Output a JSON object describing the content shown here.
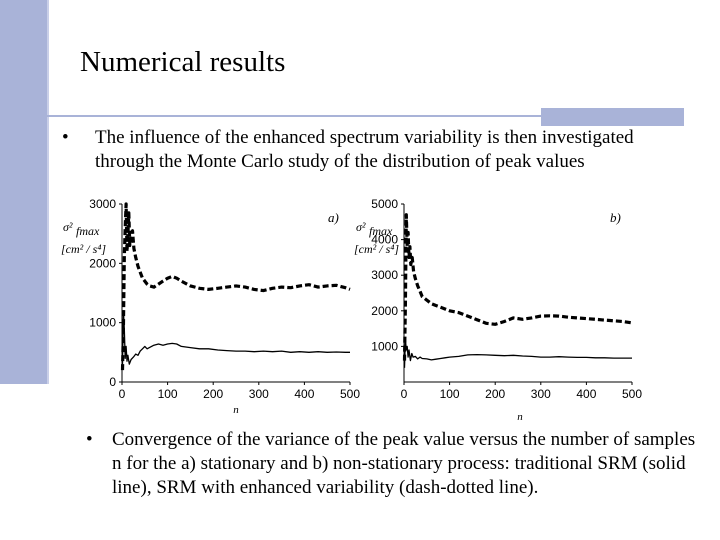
{
  "slide": {
    "title": "Numerical results",
    "bullet1_symbol": "•",
    "bullet1_text": "The influence of the enhanced spectrum variability is then investigated through the Monte Carlo study of the distribution of peak values",
    "bullet2_symbol": "•",
    "bullet2_text": "Convergence of the variance of the peak value versus the number of samples n for the a) stationary and b) non-stationary process: traditional SRM (solid line), SRM with enhanced variability (dash-dotted line)."
  },
  "colors": {
    "accent": "#a9b3d8"
  },
  "chart_data": [
    {
      "type": "line",
      "panel_label": "a)",
      "ylabel_symbol": "σ²",
      "ylabel_sub": "fmax",
      "ylabel_units": "[cm² / s⁴]",
      "xlabel": "n",
      "xlim": [
        0,
        500
      ],
      "ylim": [
        0,
        3000
      ],
      "x_ticks": [
        0,
        100,
        200,
        300,
        400,
        500
      ],
      "y_ticks": [
        0,
        1000,
        2000,
        3000
      ],
      "series": [
        {
          "style": "dash-dotted",
          "points": [
            [
              1,
              200
            ],
            [
              3,
              900
            ],
            [
              5,
              2100
            ],
            [
              7,
              2600
            ],
            [
              9,
              3000
            ],
            [
              11,
              2200
            ],
            [
              13,
              2500
            ],
            [
              15,
              2850
            ],
            [
              17,
              2300
            ],
            [
              20,
              2450
            ],
            [
              23,
              2550
            ],
            [
              26,
              2250
            ],
            [
              30,
              2100
            ],
            [
              35,
              1950
            ],
            [
              40,
              1850
            ],
            [
              45,
              1750
            ],
            [
              50,
              1700
            ],
            [
              55,
              1650
            ],
            [
              60,
              1620
            ],
            [
              70,
              1600
            ],
            [
              80,
              1650
            ],
            [
              90,
              1700
            ],
            [
              100,
              1750
            ],
            [
              110,
              1780
            ],
            [
              120,
              1750
            ],
            [
              130,
              1700
            ],
            [
              150,
              1620
            ],
            [
              170,
              1580
            ],
            [
              190,
              1560
            ],
            [
              210,
              1580
            ],
            [
              230,
              1600
            ],
            [
              250,
              1620
            ],
            [
              270,
              1600
            ],
            [
              290,
              1560
            ],
            [
              310,
              1540
            ],
            [
              330,
              1580
            ],
            [
              350,
              1600
            ],
            [
              370,
              1590
            ],
            [
              390,
              1620
            ],
            [
              410,
              1640
            ],
            [
              430,
              1600
            ],
            [
              450,
              1620
            ],
            [
              470,
              1630
            ],
            [
              490,
              1590
            ],
            [
              500,
              1560
            ]
          ]
        },
        {
          "style": "solid",
          "points": [
            [
              1,
              300
            ],
            [
              3,
              1200
            ],
            [
              5,
              900
            ],
            [
              7,
              400
            ],
            [
              9,
              600
            ],
            [
              11,
              350
            ],
            [
              13,
              450
            ],
            [
              16,
              300
            ],
            [
              20,
              380
            ],
            [
              25,
              420
            ],
            [
              30,
              470
            ],
            [
              35,
              450
            ],
            [
              40,
              520
            ],
            [
              45,
              560
            ],
            [
              50,
              600
            ],
            [
              55,
              560
            ],
            [
              60,
              580
            ],
            [
              70,
              620
            ],
            [
              80,
              640
            ],
            [
              90,
              620
            ],
            [
              100,
              640
            ],
            [
              110,
              650
            ],
            [
              120,
              640
            ],
            [
              130,
              600
            ],
            [
              150,
              580
            ],
            [
              170,
              560
            ],
            [
              190,
              560
            ],
            [
              210,
              540
            ],
            [
              230,
              530
            ],
            [
              250,
              520
            ],
            [
              270,
              520
            ],
            [
              290,
              510
            ],
            [
              310,
              520
            ],
            [
              330,
              510
            ],
            [
              350,
              520
            ],
            [
              370,
              500
            ],
            [
              390,
              510
            ],
            [
              410,
              500
            ],
            [
              430,
              510
            ],
            [
              450,
              500
            ],
            [
              470,
              505
            ],
            [
              490,
              500
            ],
            [
              500,
              500
            ]
          ]
        }
      ]
    },
    {
      "type": "line",
      "panel_label": "b)",
      "ylabel_symbol": "σ²",
      "ylabel_sub": "fmax",
      "ylabel_units": "[cm² / s⁴]",
      "xlabel": "n",
      "xlim": [
        0,
        500
      ],
      "ylim": [
        0,
        5000
      ],
      "x_ticks": [
        0,
        100,
        200,
        300,
        400,
        500
      ],
      "y_ticks": [
        1000,
        2000,
        3000,
        4000,
        5000
      ],
      "series": [
        {
          "style": "dash-dotted",
          "points": [
            [
              1,
              600
            ],
            [
              3,
              2200
            ],
            [
              5,
              4700
            ],
            [
              7,
              3800
            ],
            [
              9,
              4200
            ],
            [
              11,
              3500
            ],
            [
              13,
              3800
            ],
            [
              15,
              3300
            ],
            [
              18,
              3500
            ],
            [
              21,
              3100
            ],
            [
              25,
              2900
            ],
            [
              30,
              2700
            ],
            [
              35,
              2550
            ],
            [
              40,
              2400
            ],
            [
              45,
              2350
            ],
            [
              50,
              2300
            ],
            [
              60,
              2200
            ],
            [
              70,
              2150
            ],
            [
              80,
              2100
            ],
            [
              90,
              2050
            ],
            [
              100,
              2000
            ],
            [
              120,
              1950
            ],
            [
              140,
              1850
            ],
            [
              160,
              1750
            ],
            [
              180,
              1650
            ],
            [
              200,
              1620
            ],
            [
              220,
              1700
            ],
            [
              240,
              1800
            ],
            [
              260,
              1760
            ],
            [
              280,
              1800
            ],
            [
              300,
              1850
            ],
            [
              320,
              1860
            ],
            [
              340,
              1850
            ],
            [
              360,
              1820
            ],
            [
              380,
              1800
            ],
            [
              400,
              1780
            ],
            [
              420,
              1760
            ],
            [
              440,
              1740
            ],
            [
              460,
              1720
            ],
            [
              480,
              1700
            ],
            [
              500,
              1660
            ]
          ]
        },
        {
          "style": "solid",
          "points": [
            [
              1,
              400
            ],
            [
              3,
              1200
            ],
            [
              5,
              900
            ],
            [
              7,
              1000
            ],
            [
              9,
              700
            ],
            [
              11,
              900
            ],
            [
              14,
              600
            ],
            [
              17,
              800
            ],
            [
              20,
              700
            ],
            [
              25,
              720
            ],
            [
              30,
              650
            ],
            [
              35,
              700
            ],
            [
              40,
              660
            ],
            [
              50,
              650
            ],
            [
              60,
              620
            ],
            [
              70,
              640
            ],
            [
              80,
              660
            ],
            [
              90,
              680
            ],
            [
              100,
              700
            ],
            [
              120,
              720
            ],
            [
              140,
              760
            ],
            [
              160,
              770
            ],
            [
              180,
              760
            ],
            [
              200,
              750
            ],
            [
              220,
              740
            ],
            [
              240,
              750
            ],
            [
              260,
              730
            ],
            [
              280,
              720
            ],
            [
              300,
              700
            ],
            [
              320,
              700
            ],
            [
              340,
              710
            ],
            [
              360,
              700
            ],
            [
              380,
              690
            ],
            [
              400,
              690
            ],
            [
              420,
              680
            ],
            [
              440,
              680
            ],
            [
              460,
              670
            ],
            [
              480,
              670
            ],
            [
              500,
              670
            ]
          ]
        }
      ]
    }
  ]
}
